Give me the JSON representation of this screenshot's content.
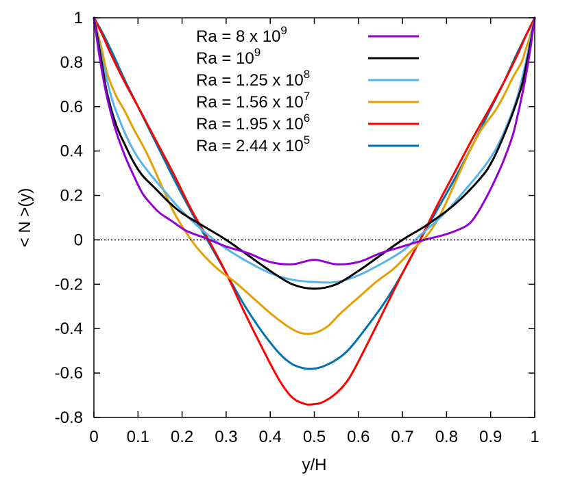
{
  "chart_data": {
    "type": "line",
    "title": "",
    "xlabel": "y/H",
    "ylabel": "< N >(y)",
    "xlim": [
      0,
      1
    ],
    "ylim": [
      -0.8,
      1
    ],
    "xticks": [
      0,
      0.1,
      0.2,
      0.3,
      0.4,
      0.5,
      0.6,
      0.7,
      0.8,
      0.9,
      1
    ],
    "xtick_labels": [
      "0",
      "0.1",
      "0.2",
      "0.3",
      "0.4",
      "0.5",
      "0.6",
      "0.7",
      "0.8",
      "0.9",
      "1"
    ],
    "yticks": [
      -0.8,
      -0.6,
      -0.4,
      -0.2,
      0,
      0.2,
      0.4,
      0.6,
      0.8,
      1
    ],
    "ytick_labels": [
      "-0.8",
      "-0.6",
      "-0.4",
      "-0.2",
      "0",
      "0.2",
      "0.4",
      "0.6",
      "0.8",
      "1"
    ],
    "grid": false,
    "zero_line": true,
    "legend_position": "top-center",
    "series": [
      {
        "name": "Ra = 8  x 10",
        "exponent": "9",
        "color": "#9400d3",
        "x": [
          0,
          0.01,
          0.02,
          0.03,
          0.04,
          0.05,
          0.07,
          0.09,
          0.11,
          0.13,
          0.15,
          0.18,
          0.21,
          0.25,
          0.3,
          0.35,
          0.4,
          0.45,
          0.5,
          0.55,
          0.6,
          0.65,
          0.7,
          0.75,
          0.79,
          0.82,
          0.85,
          0.87,
          0.89,
          0.91,
          0.93,
          0.95,
          0.96,
          0.97,
          0.98,
          0.99,
          1
        ],
        "y": [
          1,
          0.86,
          0.74,
          0.64,
          0.56,
          0.49,
          0.38,
          0.29,
          0.21,
          0.16,
          0.12,
          0.08,
          0.04,
          0.01,
          -0.03,
          -0.06,
          -0.1,
          -0.11,
          -0.09,
          -0.11,
          -0.1,
          -0.06,
          -0.03,
          0.0,
          0.02,
          0.04,
          0.07,
          0.12,
          0.19,
          0.27,
          0.36,
          0.47,
          0.55,
          0.64,
          0.74,
          0.86,
          1
        ]
      },
      {
        "name": "Ra = 10",
        "exponent": "9",
        "color": "#000000",
        "x": [
          0,
          0.01,
          0.02,
          0.03,
          0.05,
          0.07,
          0.09,
          0.11,
          0.14,
          0.17,
          0.2,
          0.25,
          0.3,
          0.35,
          0.4,
          0.45,
          0.5,
          0.55,
          0.6,
          0.65,
          0.7,
          0.75,
          0.8,
          0.83,
          0.86,
          0.89,
          0.91,
          0.93,
          0.95,
          0.97,
          0.98,
          0.99,
          1
        ],
        "y": [
          1,
          0.89,
          0.77,
          0.66,
          0.52,
          0.43,
          0.35,
          0.29,
          0.23,
          0.17,
          0.12,
          0.06,
          0.0,
          -0.07,
          -0.14,
          -0.2,
          -0.22,
          -0.2,
          -0.14,
          -0.07,
          0.0,
          0.06,
          0.13,
          0.18,
          0.24,
          0.31,
          0.38,
          0.47,
          0.57,
          0.69,
          0.78,
          0.88,
          1
        ]
      },
      {
        "name": "Ra = 1.25 x 10",
        "exponent": "8",
        "color": "#56b4e9",
        "x": [
          0,
          0.01,
          0.02,
          0.04,
          0.06,
          0.08,
          0.1,
          0.13,
          0.16,
          0.19,
          0.22,
          0.26,
          0.3,
          0.35,
          0.4,
          0.45,
          0.5,
          0.55,
          0.6,
          0.65,
          0.7,
          0.74,
          0.78,
          0.81,
          0.84,
          0.87,
          0.9,
          0.92,
          0.94,
          0.96,
          0.98,
          0.99,
          1
        ],
        "y": [
          1,
          0.9,
          0.8,
          0.64,
          0.53,
          0.44,
          0.37,
          0.29,
          0.22,
          0.15,
          0.09,
          0.02,
          -0.04,
          -0.1,
          -0.15,
          -0.18,
          -0.19,
          -0.19,
          -0.16,
          -0.11,
          -0.05,
          0.02,
          0.09,
          0.15,
          0.22,
          0.29,
          0.37,
          0.44,
          0.53,
          0.64,
          0.8,
          0.9,
          1
        ]
      },
      {
        "name": "Ra = 1.56 x 10",
        "exponent": "7",
        "color": "#e69f00",
        "x": [
          0,
          0.01,
          0.02,
          0.03,
          0.05,
          0.07,
          0.09,
          0.12,
          0.15,
          0.18,
          0.21,
          0.24,
          0.28,
          0.32,
          0.36,
          0.4,
          0.44,
          0.47,
          0.5,
          0.53,
          0.56,
          0.6,
          0.64,
          0.68,
          0.72,
          0.76,
          0.79,
          0.82,
          0.85,
          0.88,
          0.91,
          0.93,
          0.95,
          0.97,
          0.98,
          0.99,
          1
        ],
        "y": [
          1,
          0.92,
          0.84,
          0.75,
          0.65,
          0.58,
          0.5,
          0.39,
          0.26,
          0.13,
          0.03,
          -0.05,
          -0.13,
          -0.19,
          -0.26,
          -0.33,
          -0.39,
          -0.42,
          -0.42,
          -0.39,
          -0.33,
          -0.26,
          -0.19,
          -0.13,
          -0.05,
          0.03,
          0.13,
          0.26,
          0.39,
          0.5,
          0.58,
          0.65,
          0.73,
          0.8,
          0.86,
          0.92,
          1
        ]
      },
      {
        "name": "Ra = 1.95 x 10",
        "exponent": "6",
        "color": "#ff0000",
        "x": [
          0,
          0.02,
          0.04,
          0.07,
          0.1,
          0.14,
          0.18,
          0.22,
          0.26,
          0.3,
          0.34,
          0.38,
          0.42,
          0.45,
          0.48,
          0.5,
          0.52,
          0.55,
          0.58,
          0.62,
          0.66,
          0.7,
          0.74,
          0.78,
          0.82,
          0.86,
          0.9,
          0.93,
          0.96,
          0.98,
          1
        ],
        "y": [
          1,
          0.92,
          0.83,
          0.71,
          0.6,
          0.45,
          0.3,
          0.14,
          0.0,
          -0.15,
          -0.32,
          -0.48,
          -0.63,
          -0.71,
          -0.74,
          -0.74,
          -0.73,
          -0.69,
          -0.62,
          -0.47,
          -0.31,
          -0.15,
          0.0,
          0.16,
          0.31,
          0.46,
          0.6,
          0.71,
          0.83,
          0.92,
          1
        ]
      },
      {
        "name": "Ra = 2.44 x 10",
        "exponent": "5",
        "color": "#0072b2",
        "x": [
          0,
          0.02,
          0.04,
          0.07,
          0.1,
          0.14,
          0.18,
          0.22,
          0.26,
          0.3,
          0.34,
          0.38,
          0.42,
          0.45,
          0.48,
          0.5,
          0.52,
          0.55,
          0.58,
          0.62,
          0.66,
          0.7,
          0.74,
          0.78,
          0.82,
          0.86,
          0.9,
          0.93,
          0.96,
          0.98,
          1
        ],
        "y": [
          1,
          0.93,
          0.85,
          0.72,
          0.6,
          0.44,
          0.28,
          0.13,
          -0.01,
          -0.15,
          -0.29,
          -0.41,
          -0.51,
          -0.56,
          -0.58,
          -0.58,
          -0.57,
          -0.54,
          -0.49,
          -0.39,
          -0.28,
          -0.15,
          0.0,
          0.14,
          0.28,
          0.43,
          0.59,
          0.71,
          0.84,
          0.92,
          1
        ]
      }
    ]
  }
}
